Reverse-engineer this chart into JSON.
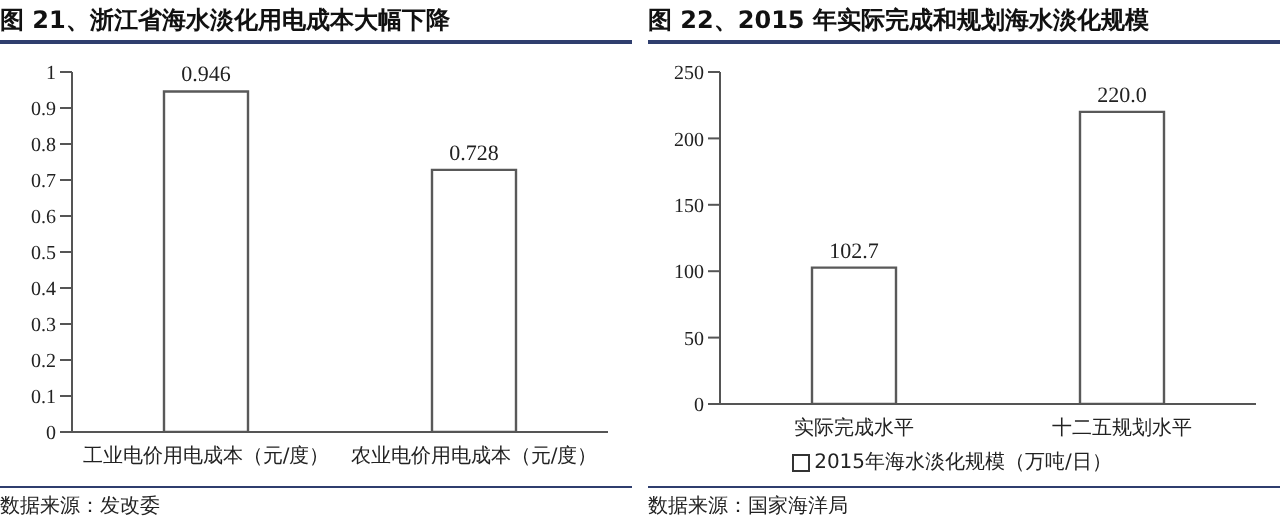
{
  "chart_data": [
    {
      "type": "bar",
      "title": "图 21、浙江省海水淡化用电成本大幅下降",
      "categories": [
        "工业电价用电成本（元/度）",
        "农业电价用电成本（元/度）"
      ],
      "values": [
        0.946,
        0.728
      ],
      "color": "#ffffff",
      "ylim": [
        0,
        1
      ],
      "yticks": [
        0,
        0.1,
        0.2,
        0.3,
        0.4,
        0.5,
        0.6,
        0.7,
        0.8,
        0.9,
        1
      ],
      "data_labels": true,
      "annotations": [
        "数据来源：发改委"
      ]
    },
    {
      "type": "bar",
      "title": "图 22、2015 年实际完成和规划海水淡化规模",
      "categories": [
        "实际完成水平",
        "十二五规划水平"
      ],
      "series": [
        {
          "name": "2015年海水淡化规模（万吨/日）",
          "color": "#ffffff",
          "values": [
            102.7,
            220.0
          ],
          "value_labels": [
            "102.7",
            "220.0"
          ]
        }
      ],
      "ylim": [
        0,
        250
      ],
      "yticks": [
        0,
        50,
        100,
        150,
        200,
        250
      ],
      "legend": "bottom",
      "annotations": [
        "数据来源：国家海洋局"
      ]
    }
  ]
}
